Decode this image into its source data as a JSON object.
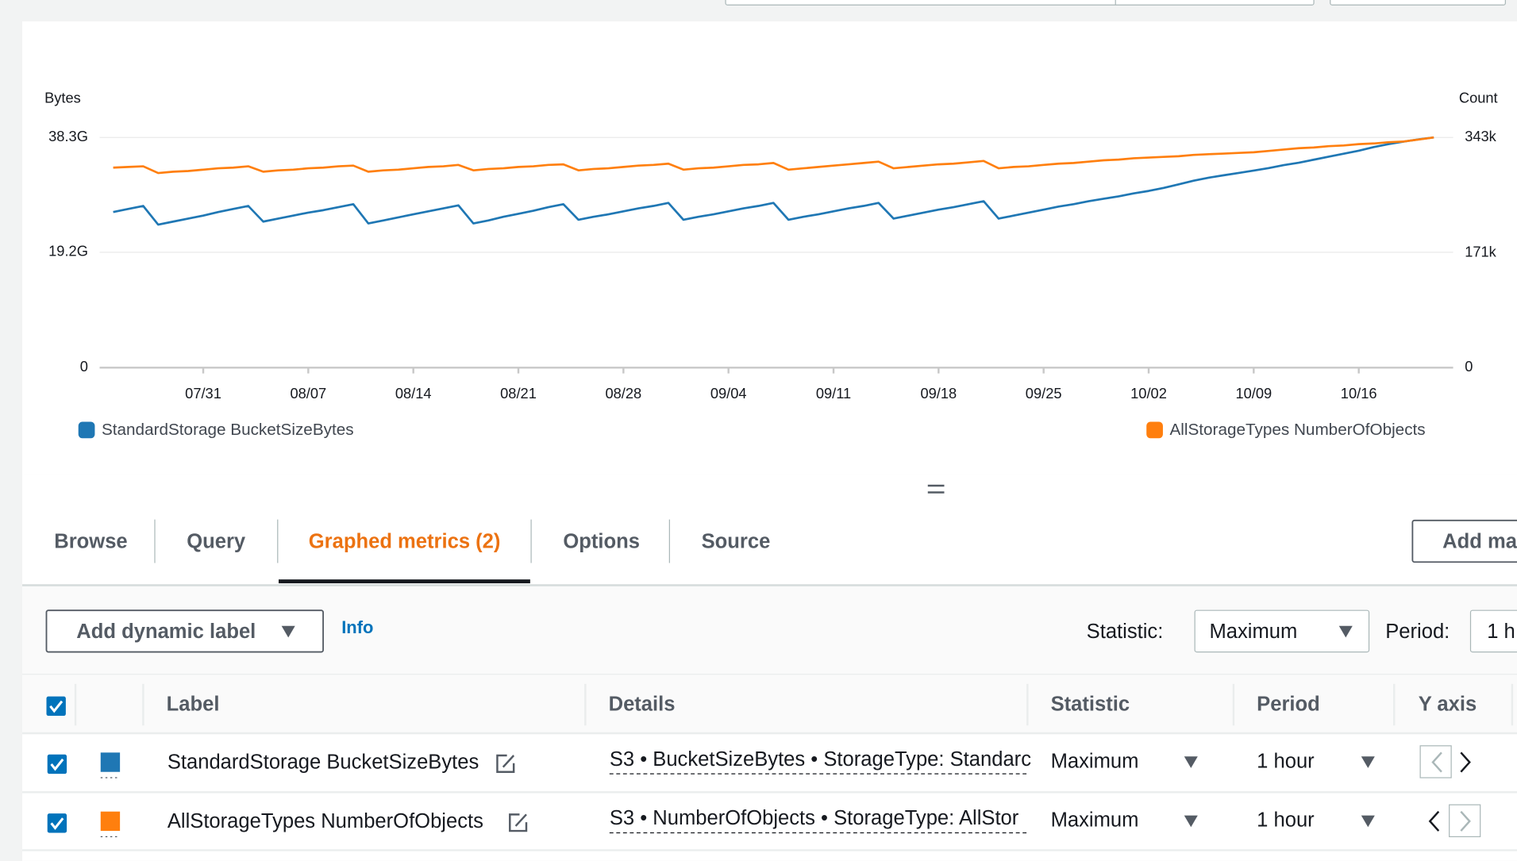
{
  "chart_data": {
    "type": "line",
    "y_label": "Bytes",
    "y2_label": "Count",
    "categories": [
      null,
      null,
      null,
      null,
      null,
      null,
      "07/31",
      null,
      null,
      null,
      null,
      null,
      null,
      "08/07",
      null,
      null,
      null,
      null,
      null,
      null,
      "08/14",
      null,
      null,
      null,
      null,
      null,
      null,
      "08/21",
      null,
      null,
      null,
      null,
      null,
      null,
      "08/28",
      null,
      null,
      null,
      null,
      null,
      null,
      "09/04",
      null,
      null,
      null,
      null,
      null,
      null,
      "09/11",
      null,
      null,
      null,
      null,
      null,
      null,
      "09/18",
      null,
      null,
      null,
      null,
      null,
      null,
      "09/25",
      null,
      null,
      null,
      null,
      null,
      null,
      "10/02",
      null,
      null,
      null,
      null,
      null,
      null,
      "10/09",
      null,
      null,
      null,
      null,
      null,
      null,
      "10/16",
      null,
      null,
      null,
      null,
      null
    ],
    "ylim": [
      0,
      38300000000
    ],
    "yticks": [
      0,
      {
        "value": 19200000000,
        "label": "19.2G"
      },
      {
        "value": 38300000000,
        "label": "38.3G"
      }
    ],
    "y2lim": [
      0,
      343000
    ],
    "y2ticks": [
      0,
      {
        "value": 171000,
        "label": "171k"
      },
      {
        "value": 343000,
        "label": "343k"
      }
    ],
    "grid": true,
    "series": [
      {
        "name": "StandardStorage BucketSizeBytes",
        "color": "#1f77b4",
        "values": [
          25900000000.0,
          26400000000.0,
          26900000000.0,
          23800000000.0,
          24300000000.0,
          24800000000.0,
          25300000000.0,
          25900000000.0,
          26400000000.0,
          26900000000.0,
          24300000000.0,
          24800000000.0,
          25300000000.0,
          25800000000.0,
          26200000000.0,
          26700000000.0,
          27200000000.0,
          24000000000.0,
          24500000000.0,
          25000000000.0,
          25500000000.0,
          26000000000.0,
          26500000000.0,
          27000000000.0,
          24000000000.0,
          24500000000.0,
          25100000000.0,
          25600000000.0,
          26100000000.0,
          26700000000.0,
          27200000000.0,
          24600000000.0,
          25100000000.0,
          25500000000.0,
          26000000000.0,
          26500000000.0,
          26900000000.0,
          27400000000.0,
          24600000000.0,
          25100000000.0,
          25500000000.0,
          26000000000.0,
          26500000000.0,
          26900000000.0,
          27400000000.0,
          24600000000.0,
          25100000000.0,
          25500000000.0,
          26000000000.0,
          26500000000.0,
          26900000000.0,
          27400000000.0,
          24800000000.0,
          25300000000.0,
          25800000000.0,
          26300000000.0,
          26700000000.0,
          27200000000.0,
          27700000000.0,
          24800000000.0,
          25300000000.0,
          25800000000.0,
          26300000000.0,
          26800000000.0,
          27200000000.0,
          27700000000.0,
          28100000000.0,
          28500000000.0,
          29000000000.0,
          29400000000.0,
          29900000000.0,
          30500000000.0,
          31100000000.0,
          31600000000.0,
          32000000000.0,
          32400000000.0,
          32800000000.0,
          33200000000.0,
          33700000000.0,
          34100000000.0,
          34600000000.0,
          35100000000.0,
          35600000000.0,
          36100000000.0,
          36700000000.0,
          37200000000.0,
          37600000000.0,
          38000000000.0,
          38300000000.0
        ]
      },
      {
        "name": "AllStorageTypes NumberOfObjects",
        "color": "#ff7f0e",
        "axis": "y2",
        "values": [
          298000,
          299000,
          300000,
          290000,
          292000,
          293000,
          295000,
          297000,
          298000,
          300000,
          292000,
          294000,
          295000,
          297000,
          298000,
          300000,
          301000,
          292000,
          294000,
          295000,
          297000,
          299000,
          300000,
          302000,
          294000,
          296000,
          297000,
          299000,
          300000,
          302000,
          303000,
          294000,
          296000,
          297000,
          299000,
          301000,
          302000,
          304000,
          295000,
          297000,
          298000,
          300000,
          302000,
          303000,
          305000,
          295000,
          297000,
          299000,
          301000,
          303000,
          305000,
          307000,
          297000,
          299000,
          301000,
          303000,
          304000,
          306000,
          308000,
          297000,
          299000,
          300000,
          302000,
          304000,
          305000,
          307000,
          309000,
          310000,
          312000,
          313000,
          314000,
          315000,
          317000,
          318000,
          319000,
          320000,
          321000,
          323000,
          325000,
          327000,
          328000,
          330000,
          331000,
          333000,
          334000,
          336000,
          337000,
          340000,
          343000
        ]
      }
    ]
  },
  "tabs": [
    "Browse",
    "Query",
    "Graphed metrics (2)",
    "Options",
    "Source"
  ],
  "add_button": "Add ma",
  "toolbar": {
    "dynamic_label": "Add dynamic label",
    "info": "Info",
    "statistic_label": "Statistic:",
    "statistic": "Maximum",
    "period_label": "Period:",
    "period": "1 h"
  },
  "table": {
    "headers": [
      "Label",
      "Details",
      "Statistic",
      "Period",
      "Y axis"
    ],
    "rows": [
      [
        "StandardStorage BucketSizeBytes",
        "S3 • BucketSizeBytes • StorageType: Standarc",
        "Maximum",
        "1 hour"
      ],
      [
        "AllStorageTypes NumberOfObjects",
        "S3 • NumberOfObjects • StorageType: AllStor",
        "Maximum",
        "1 hour"
      ]
    ]
  }
}
